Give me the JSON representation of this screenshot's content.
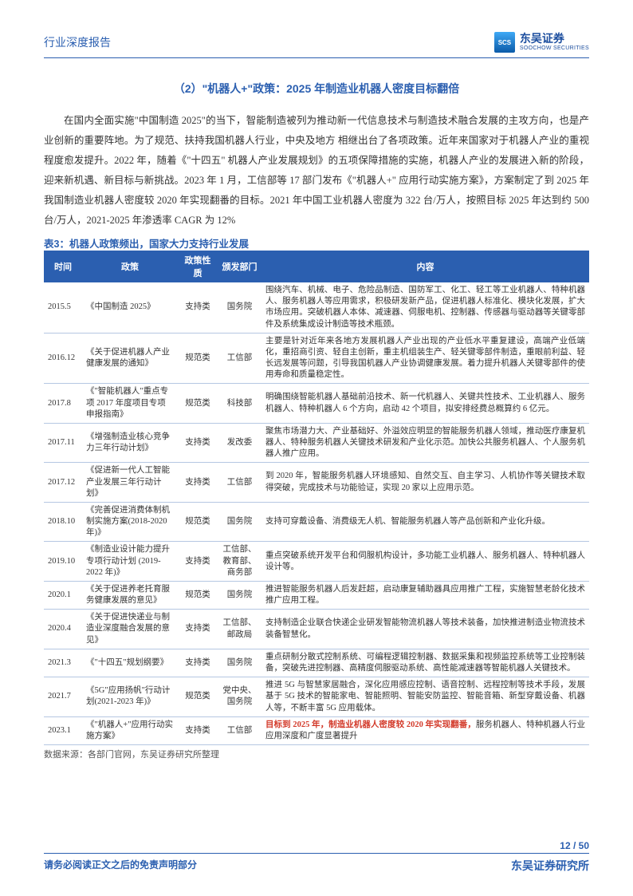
{
  "header": {
    "doc_type": "行业深度报告",
    "logo_cn": "东吴证券",
    "logo_en": "SOOCHOW SECURITIES",
    "logo_mark": "SCS"
  },
  "section": {
    "title": "（2）\"机器人+\"政策：2025 年制造业机器人密度目标翻倍"
  },
  "paragraph": "在国内全面实施\"中国制造 2025\"的当下，智能制造被列为推动新一代信息技术与制造技术融合发展的主攻方向，也是产业创新的重要阵地。为了规范、扶持我国机器人行业，中央及地方 相继出台了各项政策。近年来国家对于机器人产业的重视程度愈发提升。2022 年，随着《\"十四五\" 机器人产业发展规划》的五项保障措施的实施，机器人产业的发展进入新的阶段，迎来新机遇、新目标与新挑战。2023 年 1 月，工信部等 17 部门发布《\"机器人+\" 应用行动实施方案》，方案制定了到 2025 年我国制造业机器人密度较 2020 年实现翻番的目标。2021 年中国工业机器人密度为 322 台/万人，按照目标 2025 年达到约 500 台/万人，2021-2025 年渗透率 CAGR 为 12%",
  "table": {
    "caption": "表3：机器人政策频出，国家大力支持行业发展",
    "columns": [
      "时间",
      "政策",
      "政策性质",
      "颁发部门",
      "内容"
    ],
    "rows": [
      {
        "time": "2015.5",
        "policy": "《中国制造 2025》",
        "nature": "支持类",
        "dept": "国务院",
        "content": "围绕汽车、机械、电子、危险品制造、国防军工、化工、轻工等工业机器人、特种机器人、服务机器人等应用需求，积极研发新产品，促进机器人标准化、模块化发展，扩大市场应用。突破机器人本体、减速器、伺服电机、控制器、传感器与驱动器等关键零部件及系统集成设计制造等技术瓶颈。"
      },
      {
        "time": "2016.12",
        "policy": "《关于促进机器人产业健康发展的通知》",
        "nature": "规范类",
        "dept": "工信部",
        "content": "主要是针对近年来各地方发展机器人产业出现的产业低水平重复建设，高端产业低端化，重招商引资、轻自主创新，重主机组装生产、轻关键零部件制造，重眼前利益、轻长远发展等问题，引导我国机器人产业协调健康发展。着力提升机器人关键零部件的使用寿命和质量稳定性。"
      },
      {
        "time": "2017.8",
        "policy": "《\"智能机器人\"重点专项 2017 年度项目专项申报指南》",
        "nature": "规范类",
        "dept": "科技部",
        "content": "明确围绕智能机器人基础前沿技术、新一代机器人、关键共性技术、工业机器人、服务机器人、特种机器人 6 个方向，启动 42 个项目，拟安排经费总概算约 6 亿元。"
      },
      {
        "time": "2017.11",
        "policy": "《增强制造业核心竞争力三年行动计划》",
        "nature": "支持类",
        "dept": "发改委",
        "content": "聚焦市场潜力大、产业基础好、外溢效应明显的智能服务机器人领域，推动医疗康复机器人、特种服务机器人关键技术研发和产业化示范。加快公共服务机器人、个人服务机器人推广应用。"
      },
      {
        "time": "2017.12",
        "policy": "《促进新一代人工智能产业发展三年行动计划》",
        "nature": "支持类",
        "dept": "工信部",
        "content": "到 2020 年，智能服务机器人环境感知、自然交互、自主学习、人机协作等关键技术取得突破，完成技术与功能验证，实现 20 家以上应用示范。"
      },
      {
        "time": "2018.10",
        "policy": "《完善促进消费体制机制实施方案(2018-2020 年)》",
        "nature": "规范类",
        "dept": "国务院",
        "content": "支持可穿戴设备、消费级无人机、智能服务机器人等产品创新和产业化升级。"
      },
      {
        "time": "2019.10",
        "policy": "《制造业设计能力提升专项行动计划 (2019-2022 年)》",
        "nature": "支持类",
        "dept": "工信部、教育部、商务部",
        "content": "重点突破系统开发平台和伺服机构设计，多功能工业机器人、服务机器人、特种机器人设计等。"
      },
      {
        "time": "2020.1",
        "policy": "《关于促进养老托育服务健康发展的意见》",
        "nature": "规范类",
        "dept": "国务院",
        "content": "推进智能服务机器人后发赶超，启动康复辅助器具应用推广工程，实施智慧老龄化技术推广应用工程。"
      },
      {
        "time": "2020.4",
        "policy": "《关于促进快递业与制造业深度融合发展的意见》",
        "nature": "支持类",
        "dept": "工信部、邮政局",
        "content": "支持制造企业联合快递企业研发智能物流机器人等技术装备，加快推进制造业物流技术装备智慧化。"
      },
      {
        "time": "2021.3",
        "policy": "《\"十四五\"规划纲要》",
        "nature": "支持类",
        "dept": "国务院",
        "content": "重点研制分散式控制系统、可编程逻辑控制器、数据采集和视频监控系统等工业控制装备，突破先进控制器、高精度伺服驱动系统、高性能减速器等智能机器人关键技术。"
      },
      {
        "time": "2021.7",
        "policy": "《5G\"应用扬帆\"行动计划(2021-2023 年)》",
        "nature": "规范类",
        "dept": "党中央、国务院",
        "content": "推进 5G 与智慧家居融合，深化应用感应控制、语音控制、远程控制等技术手段，发展基于 5G 技术的智能家电、智能照明、智能安防监控、智能音箱、新型穿戴设备、机器人等，不断丰富 5G 应用载体。"
      },
      {
        "time": "2023.1",
        "policy": "《\"机器人+\"应用行动实施方案》",
        "nature": "支持类",
        "dept": "工信部",
        "content": "",
        "highlight": "目标到 2025 年，制造业机器人密度较 2020 年实现翻番，",
        "content_tail": "服务机器人、特种机器人行业应用深度和广度显著提升"
      }
    ],
    "source": "数据来源：各部门官网，东吴证券研究所整理"
  },
  "footer": {
    "page_num": "12 / 50",
    "disclaimer": "请务必阅读正文之后的免责声明部分",
    "institute": "东吴证券研究所"
  }
}
